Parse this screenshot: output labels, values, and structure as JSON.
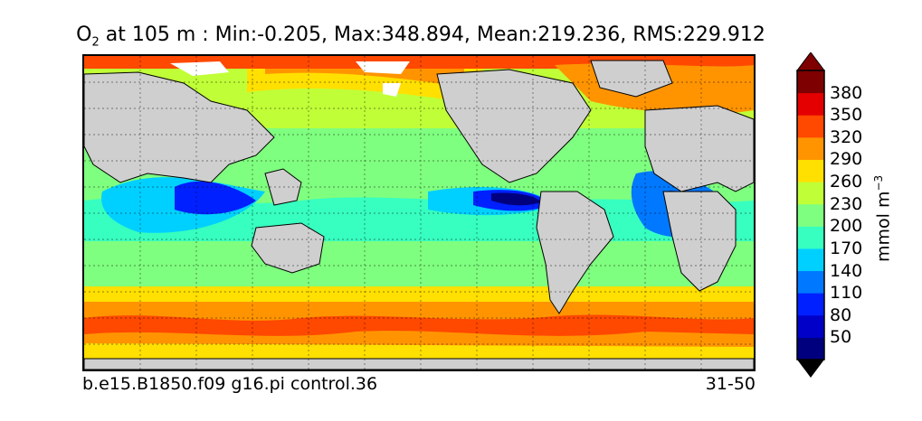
{
  "title": {
    "var": "O",
    "sub": "2",
    "rest": " at 105 m : Min:-0.205, Max:348.894, Mean:219.236, RMS:229.912"
  },
  "footer": {
    "left": "b.e15.B1850.f09 g16.pi control.36",
    "right": "31-50"
  },
  "colorbar": {
    "unit_main": "mmol m",
    "unit_exp": "−3",
    "tick_labels": [
      "380",
      "350",
      "320",
      "290",
      "260",
      "230",
      "200",
      "170",
      "140",
      "110",
      "80",
      "50"
    ],
    "colors_bottom_to_top": [
      "#00007f",
      "#0000c8",
      "#0020ff",
      "#0078ff",
      "#00d0ff",
      "#37ffc0",
      "#7fff7f",
      "#c0ff37",
      "#ffe000",
      "#ff9400",
      "#ff4800",
      "#e40000",
      "#7f0000"
    ]
  },
  "map": {
    "land_color": "#cfcfcf",
    "ice_color": "#ffffff",
    "grid": true,
    "projection": "global lat-lon"
  }
}
